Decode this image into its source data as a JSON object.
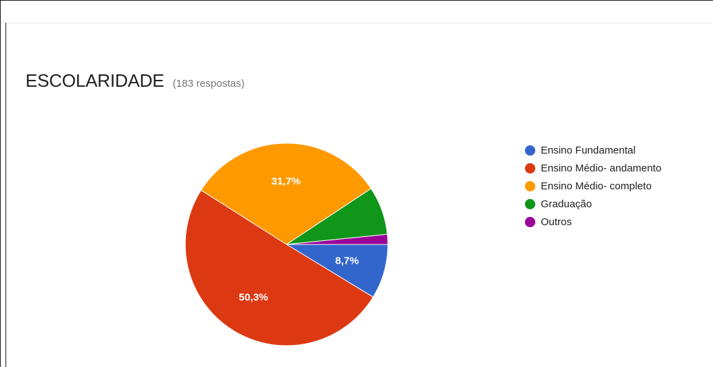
{
  "header": {
    "title": "ESCOLARIDADE",
    "subtitle": "(183 respostas)"
  },
  "chart_data": {
    "type": "pie",
    "title": "ESCOLARIDADE",
    "categories": [
      "Ensino Fundamental",
      "Ensino Médio- andamento",
      "Ensino Médio- completo",
      "Graduação",
      "Outros"
    ],
    "values": [
      8.7,
      50.3,
      31.7,
      7.7,
      1.6
    ],
    "labels": [
      "8,7%",
      "50,3%",
      "31,7%",
      "",
      ""
    ],
    "colors": [
      "#3366cc",
      "#dc3912",
      "#ff9900",
      "#109618",
      "#990099"
    ],
    "legend_position": "right",
    "start": "3 o'clock",
    "direction": "clockwise"
  },
  "legend": {
    "items": [
      {
        "label": "Ensino Fundamental",
        "color": "#3366cc"
      },
      {
        "label": "Ensino Médio- andamento",
        "color": "#dc3912"
      },
      {
        "label": "Ensino Médio- completo",
        "color": "#ff9900"
      },
      {
        "label": "Graduação",
        "color": "#109618"
      },
      {
        "label": "Outros",
        "color": "#990099"
      }
    ]
  }
}
